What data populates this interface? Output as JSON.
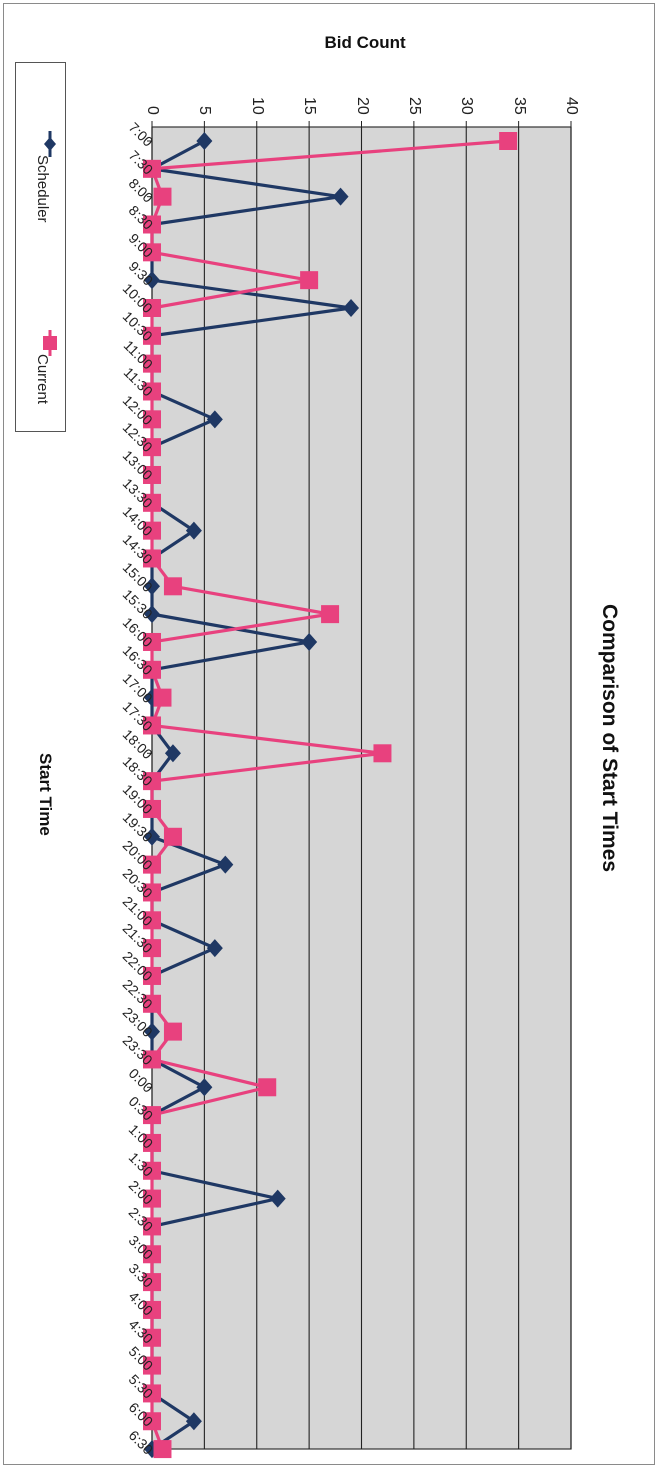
{
  "chart_data": {
    "type": "line",
    "title": "Comparison of Start Times",
    "xlabel": "Start Time",
    "ylabel": "Bid Count",
    "ylim": [
      0,
      40
    ],
    "yticks": [
      "0",
      "5",
      "10",
      "15",
      "20",
      "25",
      "30",
      "35",
      "40"
    ],
    "grid": true,
    "legend_position": "left",
    "orientation": "rotated 90° clockwise",
    "categories": [
      "7:00",
      "7:30",
      "8:00",
      "8:30",
      "9:00",
      "9:30",
      "10:00",
      "10:30",
      "11:00",
      "11:30",
      "12:00",
      "12:30",
      "13:00",
      "13:30",
      "14:00",
      "14:30",
      "15:00",
      "15:30",
      "16:00",
      "16:30",
      "17:00",
      "17:30",
      "18:00",
      "18:30",
      "19:00",
      "19:30",
      "20:00",
      "20:30",
      "21:00",
      "21:30",
      "22:00",
      "22:30",
      "23:00",
      "23:30",
      "0:00",
      "0:30",
      "1:00",
      "1:30",
      "2:00",
      "2:30",
      "3:00",
      "3:30",
      "4:00",
      "4:30",
      "5:00",
      "5:30",
      "6:00",
      "6:30"
    ],
    "series": [
      {
        "name": "Scheduler",
        "color": "#1f3864",
        "marker": "diamond",
        "values": [
          5,
          0,
          18,
          0,
          0,
          0,
          19,
          0,
          0,
          0,
          6,
          0,
          0,
          0,
          4,
          0,
          0,
          0,
          15,
          0,
          0,
          0,
          2,
          0,
          0,
          0,
          7,
          0,
          0,
          6,
          0,
          0,
          0,
          0,
          5,
          0,
          0,
          0,
          12,
          0,
          0,
          0,
          0,
          0,
          0,
          0,
          4,
          0
        ]
      },
      {
        "name": "Current",
        "color": "#e8417e",
        "marker": "square",
        "values": [
          34,
          0,
          1,
          0,
          0,
          15,
          0,
          0,
          0,
          0,
          0,
          0,
          0,
          0,
          0,
          0,
          2,
          17,
          0,
          0,
          1,
          0,
          22,
          0,
          0,
          2,
          0,
          0,
          0,
          0,
          0,
          0,
          2,
          0,
          11,
          0,
          0,
          0,
          0,
          0,
          0,
          0,
          0,
          0,
          0,
          0,
          0,
          1
        ]
      }
    ]
  },
  "colors": {
    "plot_background": "#d6d6d6",
    "gridline": "#222222"
  }
}
